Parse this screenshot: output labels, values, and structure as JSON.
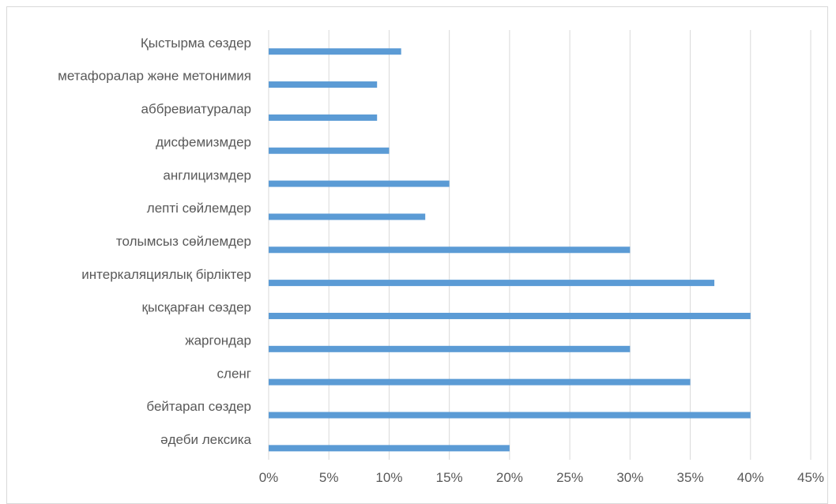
{
  "chart_data": {
    "type": "bar",
    "orientation": "horizontal",
    "categories": [
      "Қыстырма сөздер",
      "метафоралар және метонимия",
      "аббревиатуралар",
      "дисфемизмдер",
      "англицизмдер",
      "лепті сөйлемдер",
      "толымсыз сөйлемдер",
      "интеркаляциялық бірліктер",
      "қысқарған сөздер",
      "жаргондар",
      "сленг",
      "бейтарап сөздер",
      "әдеби лексика"
    ],
    "values": [
      11,
      9,
      9,
      10,
      15,
      13,
      30,
      37,
      40,
      30,
      35,
      40,
      20
    ],
    "xlim": [
      0,
      45
    ],
    "x_ticks": [
      "0%",
      "5%",
      "10%",
      "15%",
      "20%",
      "25%",
      "30%",
      "35%",
      "40%",
      "45%"
    ],
    "title": "",
    "xlabel": "",
    "ylabel": "",
    "grid": "vertical",
    "legend": "none",
    "colors": {
      "bar": "#5b9bd5",
      "grid": "#d9d9d9",
      "text": "#595959"
    }
  }
}
